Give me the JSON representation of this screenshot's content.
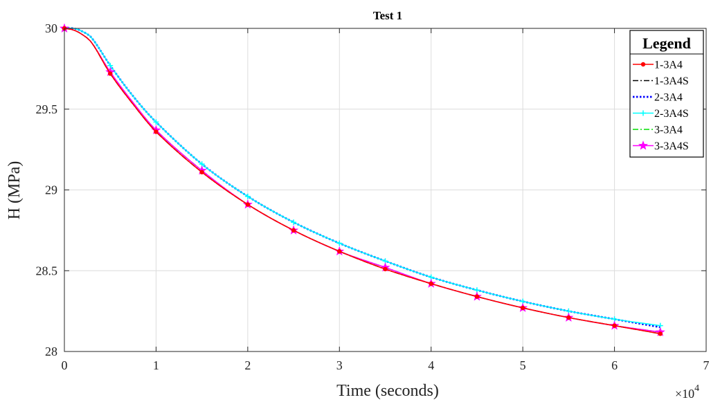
{
  "chart_data": {
    "type": "line",
    "title": "Test 1",
    "xlabel": "Time (seconds)",
    "ylabel": "H (MPa)",
    "x_exponent_base": "×10",
    "x_exponent_power": "4",
    "xlim": [
      0,
      7
    ],
    "ylim": [
      28,
      30
    ],
    "xticks": [
      "0",
      "1",
      "2",
      "3",
      "4",
      "5",
      "6",
      "7"
    ],
    "yticks": [
      "28",
      "28.5",
      "29",
      "29.5",
      "30"
    ],
    "grid": true,
    "legend_title": "Legend",
    "legend_position": "top-right",
    "x": [
      0,
      0.1,
      0.2,
      0.3,
      0.5,
      0.75,
      1.0,
      1.5,
      2.0,
      2.5,
      3.0,
      3.5,
      4.0,
      4.5,
      5.0,
      5.5,
      6.0,
      6.5
    ],
    "series": [
      {
        "name": "1-3A4",
        "color": "#ff0000",
        "dash": "solid",
        "marker": "dot",
        "values": [
          30.0,
          29.99,
          29.96,
          29.91,
          29.72,
          29.53,
          29.36,
          29.11,
          28.91,
          28.75,
          28.62,
          28.51,
          28.42,
          28.34,
          28.27,
          28.21,
          28.16,
          28.11
        ]
      },
      {
        "name": "1-3A4S",
        "color": "#000000",
        "dash": "dashdot",
        "marker": "none",
        "values": [
          30.0,
          29.99,
          29.96,
          29.91,
          29.72,
          29.53,
          29.36,
          29.11,
          28.91,
          28.75,
          28.62,
          28.51,
          28.42,
          28.34,
          28.27,
          28.21,
          28.16,
          28.11
        ]
      },
      {
        "name": "2-3A4",
        "color": "#0000ff",
        "dash": "dotted",
        "marker": "none",
        "values": [
          30.0,
          30.0,
          29.98,
          29.94,
          29.77,
          29.58,
          29.42,
          29.16,
          28.96,
          28.8,
          28.67,
          28.56,
          28.46,
          28.38,
          28.31,
          28.25,
          28.2,
          28.15
        ]
      },
      {
        "name": "2-3A4S",
        "color": "#00ffff",
        "dash": "solid",
        "marker": "plus",
        "values": [
          30.0,
          30.0,
          29.98,
          29.94,
          29.77,
          29.58,
          29.42,
          29.16,
          28.96,
          28.8,
          28.67,
          28.56,
          28.46,
          28.38,
          28.31,
          28.25,
          28.2,
          28.16
        ]
      },
      {
        "name": "3-3A4",
        "color": "#00dd00",
        "dash": "dashdot",
        "marker": "none",
        "values": [
          30.0,
          29.99,
          29.96,
          29.91,
          29.73,
          29.54,
          29.37,
          29.12,
          28.91,
          28.75,
          28.62,
          28.52,
          28.42,
          28.34,
          28.27,
          28.21,
          28.16,
          28.12
        ]
      },
      {
        "name": "3-3A4S",
        "color": "#ff00ff",
        "dash": "solid",
        "marker": "star",
        "values": [
          30.0,
          29.99,
          29.96,
          29.91,
          29.73,
          29.54,
          29.37,
          29.12,
          28.91,
          28.75,
          28.62,
          28.52,
          28.42,
          28.34,
          28.27,
          28.21,
          28.16,
          28.12
        ]
      }
    ]
  }
}
